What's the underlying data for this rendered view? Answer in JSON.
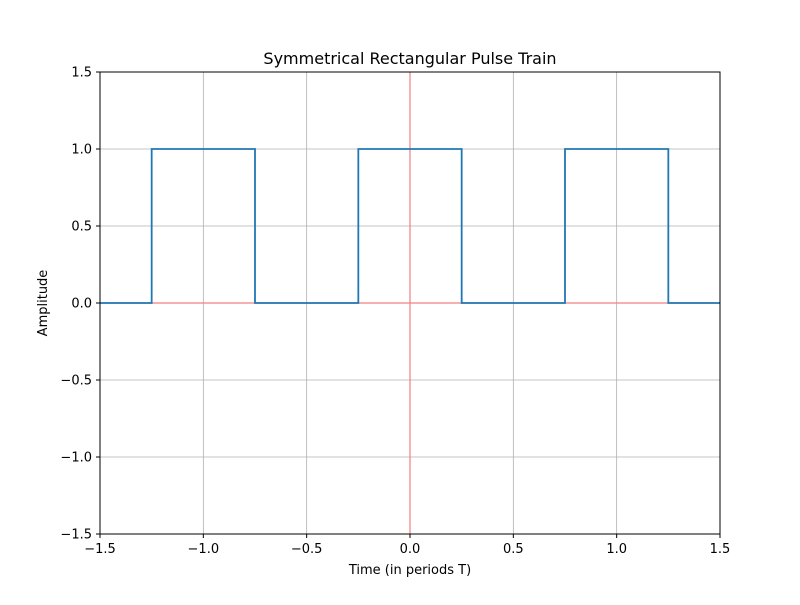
{
  "chart_data": {
    "type": "line",
    "title": "Symmetrical Rectangular Pulse Train",
    "xlabel": "Time (in periods T)",
    "ylabel": "Amplitude",
    "xlim": [
      -1.5,
      1.5
    ],
    "ylim": [
      -1.5,
      1.5
    ],
    "xticks": [
      -1.5,
      -1.0,
      -0.5,
      0.0,
      0.5,
      1.0,
      1.5
    ],
    "yticks": [
      -1.5,
      -1.0,
      -0.5,
      0.0,
      0.5,
      1.0,
      1.5
    ],
    "xtick_labels": [
      "−1.5",
      "−1.0",
      "−0.5",
      "0.0",
      "0.5",
      "1.0",
      "1.5"
    ],
    "ytick_labels": [
      "−1.5",
      "−1.0",
      "−0.5",
      "0.0",
      "0.5",
      "1.0",
      "1.5"
    ],
    "grid": true,
    "series": [
      {
        "color": "#1f77b4",
        "x": [
          -1.5,
          -1.25,
          -1.25,
          -0.75,
          -0.75,
          -0.25,
          -0.25,
          0.25,
          0.25,
          0.75,
          0.75,
          1.25,
          1.25,
          1.5
        ],
        "y": [
          0,
          0,
          1,
          1,
          0,
          0,
          1,
          1,
          0,
          0,
          1,
          1,
          0,
          0
        ]
      }
    ],
    "reference_lines": {
      "color": "#f08080",
      "horizontal_y": 0,
      "vertical_x": 0
    },
    "colors": {
      "grid": "#b0b0b0",
      "spine": "#000000"
    }
  }
}
